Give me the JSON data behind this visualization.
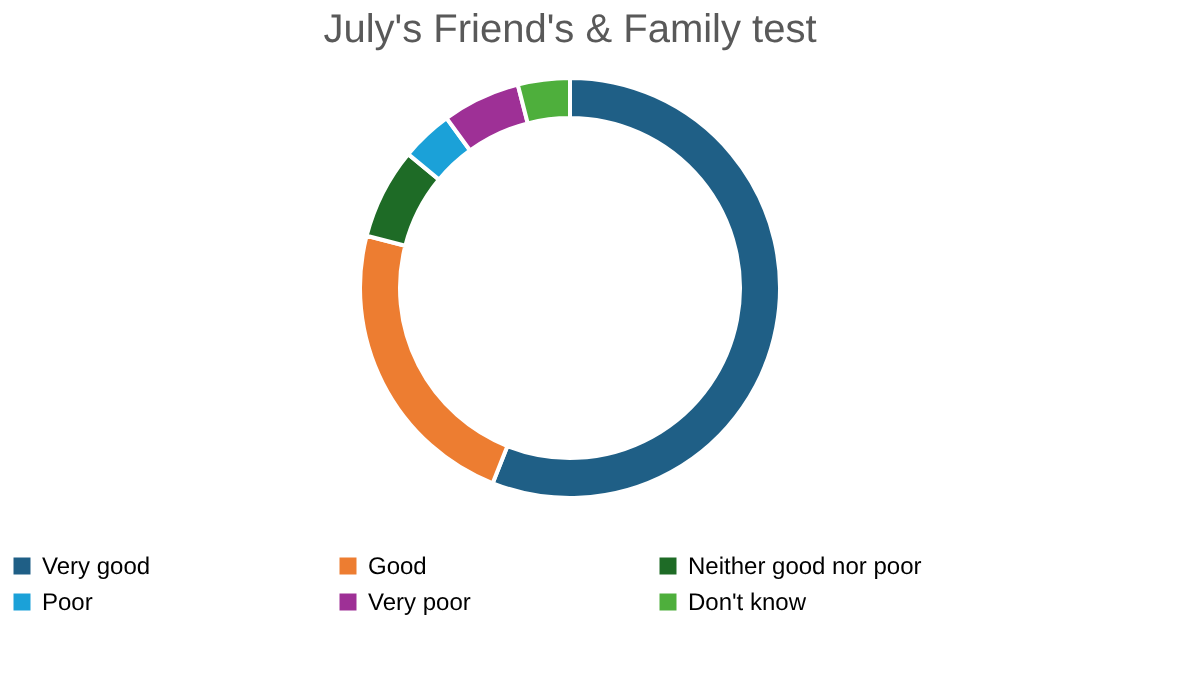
{
  "chart_data": {
    "type": "donut",
    "title": "July's Friend's & Family test",
    "categories": [
      "Very good",
      "Good",
      "Neither good nor poor",
      "Poor",
      "Very poor",
      "Don't know"
    ],
    "values": [
      56,
      23,
      7,
      4,
      6,
      4
    ],
    "colors": [
      "#1f5f86",
      "#ed7d31",
      "#1e6b26",
      "#1ba1d8",
      "#9e3096",
      "#4eaf3c"
    ],
    "legend": "bottom"
  }
}
